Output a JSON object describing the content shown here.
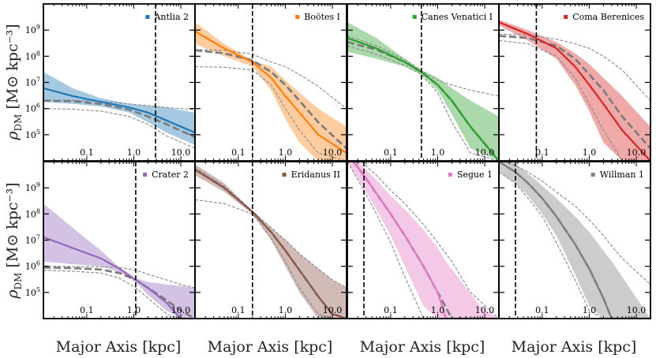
{
  "chart_data": {
    "type": "line",
    "layout": "2x4 grid",
    "xlabel": "Major Axis [kpc]",
    "ylabel_text": "ρ",
    "ylabel_sub": "DM",
    "ylabel_units": "[M⊙ kpc⁻³]",
    "xscale": "log",
    "yscale": "log",
    "xlim": [
      0.012,
      20
    ],
    "ylim": [
      10000,
      10000000000
    ],
    "x_ticks": [
      {
        "v": 0.1,
        "label": "0.1"
      },
      {
        "v": 1,
        "label": "1.0"
      },
      {
        "v": 10,
        "label": "10.0"
      }
    ],
    "y_ticks": [
      {
        "v": 100000,
        "base": "10",
        "exp": "5"
      },
      {
        "v": 1000000,
        "base": "10",
        "exp": "6"
      },
      {
        "v": 10000000,
        "base": "10",
        "exp": "7"
      },
      {
        "v": 100000000,
        "base": "10",
        "exp": "8"
      },
      {
        "v": 1000000000,
        "base": "10",
        "exp": "9"
      }
    ],
    "legend_placement": "top-right",
    "panels": [
      {
        "name": "Antlia 2",
        "color": "#1f77b4",
        "vline": 2.9,
        "x": [
          0.012,
          0.05,
          0.2,
          0.8,
          2.0,
          5.0,
          20.0
        ],
        "median": [
          6000000,
          3000000,
          1800000,
          1100000,
          700000,
          350000,
          120000
        ],
        "band_hi": [
          25000000,
          6000000,
          2500000,
          1500000,
          1300000,
          1100000,
          700000
        ],
        "band_lo": [
          1800000,
          1500000,
          1200000,
          700000,
          300000,
          120000,
          40000
        ],
        "ref_x": [
          0.012,
          0.05,
          0.2,
          0.8,
          2.0,
          5.0,
          20.0
        ],
        "ref_median": [
          2000000,
          1900000,
          1500000,
          900000,
          500000,
          250000,
          80000
        ],
        "ref_hi": [
          2100000,
          2050000,
          1900000,
          1500000,
          1300000,
          1100000,
          900000
        ],
        "ref_lo": [
          1000000,
          950000,
          800000,
          500000,
          250000,
          90000,
          30000
        ]
      },
      {
        "name": "Boötes I",
        "color": "#ff7f0e",
        "vline": 0.2,
        "x": [
          0.012,
          0.05,
          0.2,
          0.5,
          1.0,
          2.0,
          5.0,
          20.0
        ],
        "median": [
          900000000,
          200000000,
          60000000,
          15000000,
          3000000,
          700000,
          100000,
          20000
        ],
        "band_hi": [
          2000000000,
          300000000,
          70000000,
          40000000,
          12000000,
          4000000,
          1000000,
          200000
        ],
        "band_lo": [
          300000000,
          100000000,
          40000000,
          5000000,
          400000,
          50000,
          10000,
          10000
        ],
        "ref_x": [
          0.012,
          0.05,
          0.2,
          0.5,
          1.0,
          2.0,
          5.0,
          20.0
        ],
        "ref_median": [
          170000000,
          130000000,
          70000000,
          25000000,
          8000000,
          2000000,
          300000,
          30000
        ],
        "ref_hi": [
          180000000,
          170000000,
          120000000,
          60000000,
          40000000,
          20000000,
          7000000,
          1000000
        ],
        "ref_lo": [
          40000000,
          38000000,
          30000000,
          8000000,
          1000000,
          150000,
          20000,
          10000
        ]
      },
      {
        "name": "Canes Venatici I",
        "color": "#2ca02c",
        "vline": 0.45,
        "x": [
          0.012,
          0.05,
          0.2,
          0.45,
          1.0,
          2.0,
          5.0,
          20.0
        ],
        "median": [
          500000000,
          200000000,
          60000000,
          25000000,
          8000000,
          2000000,
          200000,
          10000
        ],
        "band_hi": [
          2000000000,
          500000000,
          80000000,
          30000000,
          15000000,
          6000000,
          2000000,
          500000
        ],
        "band_lo": [
          150000000,
          80000000,
          40000000,
          20000000,
          5000000,
          600000,
          30000,
          10000
        ],
        "ref_x": [
          0.012,
          0.05,
          0.2,
          0.45,
          1.0,
          2.0,
          5.0,
          20.0
        ],
        "ref_median": [
          350000000,
          180000000,
          60000000,
          25000000,
          8000000,
          2000000,
          200000,
          10000
        ],
        "ref_hi": [
          600000000,
          250000000,
          75000000,
          28000000,
          12000000,
          8000000,
          5000000,
          3000000
        ],
        "ref_lo": [
          250000000,
          120000000,
          45000000,
          20000000,
          4000000,
          300000,
          20000,
          10000
        ]
      },
      {
        "name": "Coma Berenices",
        "color": "#d62728",
        "vline": 0.075,
        "x": [
          0.012,
          0.05,
          0.2,
          0.5,
          1.0,
          2.0,
          5.0,
          20.0
        ],
        "median": [
          2000000000,
          700000000,
          200000000,
          40000000,
          8000000,
          1500000,
          150000,
          10000
        ],
        "band_hi": [
          2500000000,
          1000000000,
          350000000,
          130000000,
          50000000,
          15000000,
          3000000,
          200000
        ],
        "band_lo": [
          1500000000,
          400000000,
          80000000,
          8000000,
          800000,
          50000,
          10000,
          10000
        ],
        "ref_x": [
          0.012,
          0.05,
          0.2,
          0.5,
          1.0,
          2.0,
          5.0,
          20.0
        ],
        "ref_median": [
          600000000,
          500000000,
          250000000,
          80000000,
          20000000,
          5000000,
          500000,
          30000
        ],
        "ref_hi": [
          700000000,
          650000000,
          450000000,
          300000000,
          200000000,
          100000000,
          30000000,
          2000000
        ],
        "ref_lo": [
          400000000,
          300000000,
          100000000,
          15000000,
          1500000,
          150000,
          10000,
          10000
        ]
      },
      {
        "name": "Crater 2",
        "color": "#9467bd",
        "vline": 1.1,
        "x": [
          0.012,
          0.05,
          0.2,
          0.5,
          1.1,
          2.0,
          5.0,
          10.0,
          20.0
        ],
        "median": [
          13000000,
          5000000,
          2000000,
          800000,
          300000,
          150000,
          40000,
          10000,
          10000
        ],
        "band_hi": [
          250000000,
          30000000,
          4000000,
          900000,
          350000,
          250000,
          200000,
          180000,
          150000
        ],
        "band_lo": [
          1500000,
          1200000,
          1000000,
          600000,
          250000,
          80000,
          20000,
          10000,
          10000
        ],
        "ref_x": [
          0.012,
          0.05,
          0.2,
          0.5,
          1.1,
          2.0,
          5.0,
          10.0,
          20.0
        ],
        "ref_median": [
          900000,
          850000,
          750000,
          550000,
          300000,
          150000,
          50000,
          20000,
          10000
        ],
        "ref_hi": [
          1000000,
          980000,
          950000,
          900000,
          700000,
          500000,
          300000,
          200000,
          150000
        ],
        "ref_lo": [
          700000,
          650000,
          550000,
          350000,
          150000,
          60000,
          15000,
          10000,
          10000
        ]
      },
      {
        "name": "Eridanus II",
        "color": "#8c564b",
        "vline": 0.2,
        "x": [
          0.012,
          0.05,
          0.2,
          0.5,
          1.0,
          2.0,
          5.0,
          10.0,
          20.0
        ],
        "median": [
          5000000000,
          1000000000,
          120000000,
          20000000,
          4000000,
          700000,
          70000,
          15000,
          10000
        ],
        "band_hi": [
          8000000000,
          1500000000,
          130000000,
          30000000,
          10000000,
          3000000,
          800000,
          300000,
          150000
        ],
        "band_lo": [
          3000000000,
          700000000,
          100000000,
          10000000,
          1000000,
          100000,
          10000,
          10000,
          10000
        ],
        "ref_x": [
          0.012,
          0.05,
          0.2,
          0.5,
          1.0,
          2.0,
          5.0,
          10.0,
          20.0
        ],
        "ref_median": [
          5000000000,
          1000000000,
          120000000,
          20000000,
          4000000,
          700000,
          70000,
          15000,
          10000
        ],
        "ref_hi": [
          6000000000,
          1200000000,
          130000000,
          30000000,
          10000000,
          3000000,
          800000,
          300000,
          150000
        ],
        "ref_lo": [
          350000000,
          250000000,
          100000000,
          12000000,
          1500000,
          150000,
          15000,
          10000,
          10000
        ]
      },
      {
        "name": "Segue 1",
        "color": "#e377c2",
        "vline": 0.027,
        "x": [
          0.012,
          0.027,
          0.05,
          0.1,
          0.2,
          0.5,
          1.0,
          1.5,
          3.0,
          8.0,
          20.0
        ],
        "median": [
          20000000000,
          3000000000,
          600000000,
          100000000,
          15000000,
          1000000,
          100000,
          10000,
          10000,
          10000,
          10000
        ],
        "band_hi": [
          30000000000,
          6000000000,
          2000000000,
          500000000,
          150000000,
          25000000,
          5000000,
          1500000,
          300000,
          30000,
          10000
        ],
        "band_lo": [
          10000000000,
          1000000000,
          150000000,
          15000000,
          1000000,
          30000,
          10000,
          10000,
          10000,
          10000,
          10000
        ],
        "ref_x": [
          0.012,
          0.027,
          0.05,
          0.1,
          0.2,
          0.5,
          1.0,
          2.0,
          5.0,
          20.0
        ],
        "ref_median": [
          20000000000,
          3000000000,
          600000000,
          100000000,
          15000000,
          1000000,
          100000,
          10000,
          10000,
          10000
        ],
        "ref_hi": [
          30000000000,
          8000000000,
          3000000000,
          800000000,
          250000000,
          40000000,
          8000000,
          1500000,
          100000,
          10000
        ],
        "ref_lo": [
          10000000000,
          800000000,
          100000000,
          8000000,
          400000,
          10000,
          10000,
          10000,
          10000,
          10000
        ]
      },
      {
        "name": "Willman 1",
        "color": "#7f7f7f",
        "vline": 0.027,
        "x": [
          0.012,
          0.027,
          0.05,
          0.1,
          0.2,
          0.5,
          1.0,
          2.0,
          3.0,
          5.0,
          20.0
        ],
        "median": [
          10000000000,
          4000000000,
          1500000000,
          400000000,
          80000000,
          7000000,
          800000,
          60000,
          10000,
          10000,
          10000
        ],
        "band_hi": [
          20000000000,
          8000000000,
          3500000000,
          1200000000,
          400000000,
          80000000,
          20000000,
          4000000,
          1500000,
          400000,
          10000
        ],
        "band_lo": [
          4000000000,
          1500000000,
          500000000,
          100000000,
          15000000,
          500000,
          30000,
          10000,
          10000,
          10000,
          10000
        ],
        "ref_x": [
          0.012,
          0.027,
          0.05,
          0.1,
          0.2,
          0.5,
          1.0,
          2.0,
          3.0,
          5.0,
          20.0
        ],
        "ref_median": [
          10000000000,
          4000000000,
          1500000000,
          400000000,
          80000000,
          7000000,
          800000,
          60000,
          10000,
          10000,
          10000
        ],
        "ref_hi": [
          12000000000,
          7000000000,
          4000000000,
          1800000000,
          700000000,
          200000000,
          60000000,
          15000000,
          6000000,
          2000000,
          200000
        ],
        "ref_lo": [
          4000000000,
          1500000000,
          400000000,
          80000000,
          8000000,
          300000,
          20000,
          10000,
          10000,
          10000,
          10000
        ]
      }
    ]
  }
}
